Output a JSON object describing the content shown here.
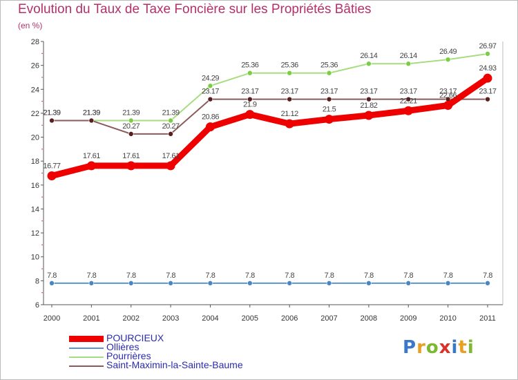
{
  "page": {
    "title": "Evolution du Taux de Taxe Foncière sur les Propriétés Bâties",
    "unit": "(en %)"
  },
  "logo": {
    "letters": [
      "P",
      "r",
      "o",
      "x",
      "i",
      "t",
      "i"
    ],
    "colors": [
      "#3a78c8",
      "#e8a020",
      "#7cb830",
      "#d8342c",
      "#3a78c8",
      "#e8a020",
      "#7cb830"
    ]
  },
  "chart_data": {
    "type": "line",
    "title": "Evolution du Taux de Taxe Foncière sur les Propriétés Bâties",
    "ylabel": "(en %)",
    "xlabel": "",
    "ylim": [
      6,
      28
    ],
    "yticks": [
      6,
      8,
      10,
      12,
      14,
      16,
      18,
      20,
      22,
      24,
      26,
      28
    ],
    "grid": false,
    "legend_position": "bottom-left",
    "categories": [
      "2000",
      "2001",
      "2002",
      "2003",
      "2004",
      "2005",
      "2006",
      "2007",
      "2008",
      "2009",
      "2010",
      "2011"
    ],
    "series": [
      {
        "name": "Ollières",
        "color": "#5b94c8",
        "marker_color": "#4a86c0",
        "emphasis": false,
        "values": [
          7.8,
          7.8,
          7.8,
          7.8,
          7.8,
          7.8,
          7.8,
          7.8,
          7.8,
          7.8,
          7.8,
          7.8
        ],
        "labels": [
          "7.8",
          "7.8",
          "7.8",
          "7.8",
          "7.8",
          "7.8",
          "7.8",
          "7.8",
          "7.8",
          "7.8",
          "7.8",
          "7.8"
        ]
      },
      {
        "name": "Pourrières",
        "color": "#a6dd7e",
        "marker_color": "#7ccc44",
        "emphasis": false,
        "values": [
          21.39,
          21.39,
          21.39,
          21.39,
          24.29,
          25.36,
          25.36,
          25.36,
          26.14,
          26.14,
          26.49,
          26.97
        ],
        "labels": [
          "21.39",
          "21.39",
          "21.39",
          "21.39",
          "24.29",
          "25.36",
          "25.36",
          "25.36",
          "26.14",
          "26.14",
          "26.49",
          "26.97"
        ]
      },
      {
        "name": "Saint-Maximin-la-Sainte-Baume",
        "color": "#8b5a5a",
        "marker_color": "#5a1e1e",
        "emphasis": false,
        "values": [
          21.39,
          21.39,
          20.27,
          20.27,
          23.17,
          23.17,
          23.17,
          23.17,
          23.17,
          23.17,
          23.17,
          23.17
        ],
        "labels": [
          "21.39",
          "21.39",
          "20.27",
          "20.27",
          "23.17",
          "23.17",
          "23.17",
          "23.17",
          "23.17",
          "23.17",
          "23.17",
          "23.17"
        ]
      },
      {
        "name": "POURCIEUX",
        "color": "#ee0000",
        "marker_color": "#ee0000",
        "emphasis": true,
        "values": [
          16.77,
          17.61,
          17.61,
          17.61,
          20.86,
          21.9,
          21.12,
          21.5,
          21.82,
          22.21,
          22.66,
          24.93
        ],
        "labels": [
          "16.77",
          "17.61",
          "17.61",
          "17.61",
          "20.86",
          "21.9",
          "21.12",
          "21.5",
          "21.82",
          "22.21",
          "22.66",
          "24.93"
        ]
      }
    ],
    "legend_order": [
      "POURCIEUX",
      "Ollières",
      "Pourrières",
      "Saint-Maximin-la-Sainte-Baume"
    ]
  }
}
